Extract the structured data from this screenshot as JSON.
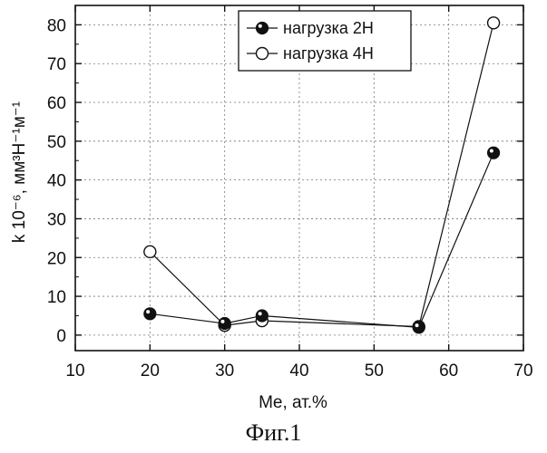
{
  "chart_data": {
    "type": "line",
    "xlabel": "Me, ат.%",
    "ylabel": "k 10⁻⁶, мм³Н⁻¹м⁻¹",
    "xlim": [
      10,
      70
    ],
    "ylim": [
      -4,
      85
    ],
    "xticks": [
      10,
      20,
      30,
      40,
      50,
      60,
      70
    ],
    "yticks": [
      0,
      10,
      20,
      30,
      40,
      50,
      60,
      70,
      80
    ],
    "grid": true,
    "legend_position": "top-right",
    "series": [
      {
        "name": "нагрузка 2Н",
        "marker": "filled",
        "x": [
          20,
          30,
          35,
          56,
          66
        ],
        "y": [
          5.5,
          3,
          5,
          2,
          47
        ]
      },
      {
        "name": "нагрузка 4Н",
        "marker": "open",
        "x": [
          20,
          30,
          35,
          56,
          66
        ],
        "y": [
          21.5,
          2.5,
          3.7,
          2.2,
          80.5
        ]
      }
    ]
  },
  "caption": "Фиг.1"
}
